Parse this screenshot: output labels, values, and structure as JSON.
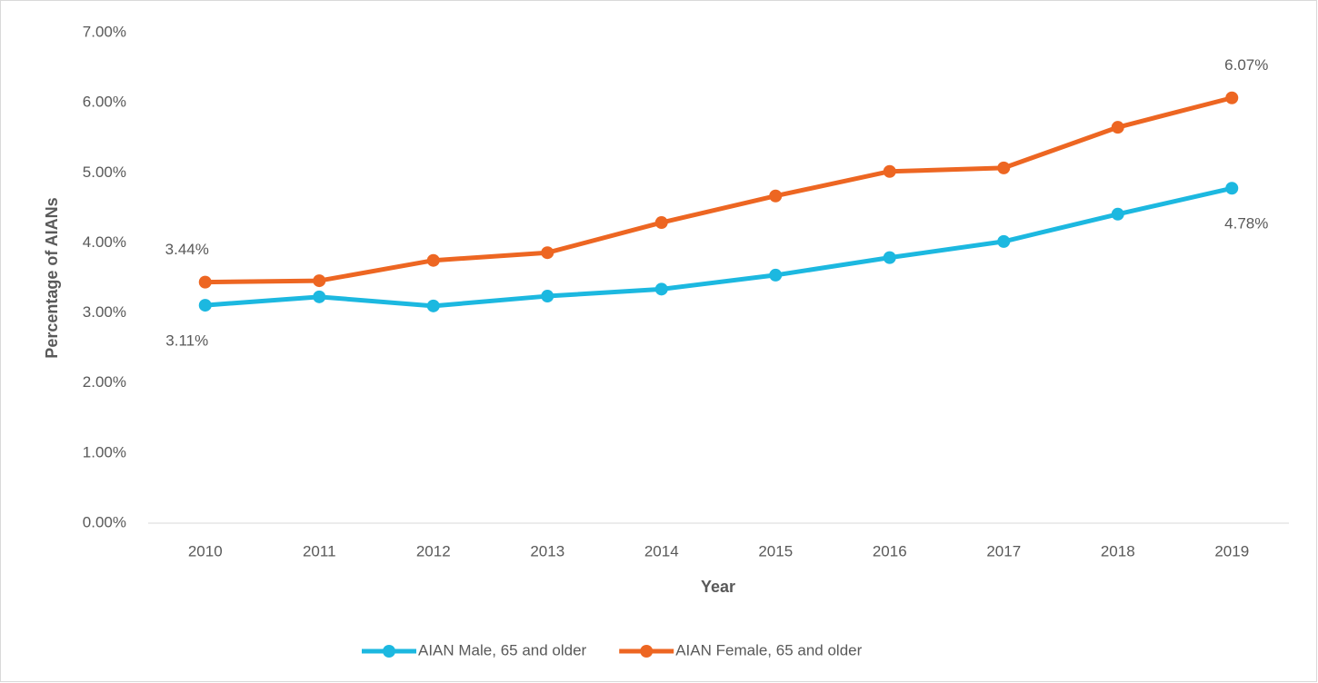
{
  "chart_data": {
    "type": "line",
    "x_label": "Year",
    "y_label": "Percentage of AIANs",
    "categories": [
      "2010",
      "2011",
      "2012",
      "2013",
      "2014",
      "2015",
      "2016",
      "2017",
      "2018",
      "2019"
    ],
    "series": [
      {
        "name": "AIAN Male, 65 and older",
        "color": "#1cb8e0",
        "values": [
          3.11,
          3.23,
          3.1,
          3.24,
          3.34,
          3.54,
          3.79,
          4.02,
          4.41,
          4.78
        ],
        "value_labels": [
          "3.11%",
          null,
          null,
          null,
          null,
          null,
          null,
          null,
          null,
          "4.78%"
        ]
      },
      {
        "name": "AIAN Female, 65 and older",
        "color": "#ed6622",
        "values": [
          3.44,
          3.46,
          3.75,
          3.86,
          4.29,
          4.67,
          5.02,
          5.07,
          5.65,
          6.07
        ],
        "value_labels": [
          "3.44%",
          null,
          null,
          null,
          null,
          null,
          null,
          null,
          null,
          "6.07%"
        ]
      }
    ],
    "ylim": [
      0,
      7
    ],
    "yticks": [
      {
        "value": 0,
        "label": "0.00%"
      },
      {
        "value": 1,
        "label": "1.00%"
      },
      {
        "value": 2,
        "label": "2.00%"
      },
      {
        "value": 3,
        "label": "3.00%"
      },
      {
        "value": 4,
        "label": "4.00%"
      },
      {
        "value": 5,
        "label": "5.00%"
      },
      {
        "value": 6,
        "label": "6.00%"
      },
      {
        "value": 7,
        "label": "7.00%"
      }
    ],
    "legend": "bottom"
  }
}
